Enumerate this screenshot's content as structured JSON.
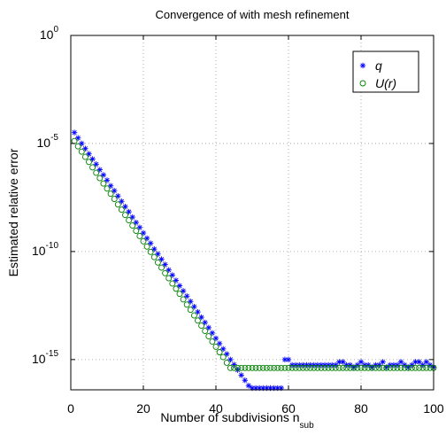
{
  "chart_data": {
    "type": "scatter",
    "title": "Convergence of with mesh refinement",
    "xlabel": "Number of subdivisions n",
    "xlabel_sub": "sub",
    "ylabel": "Estimated relative error",
    "xlim": [
      0,
      100
    ],
    "ylim_log10": [
      -16.4,
      0
    ],
    "yscale": "log",
    "grid": true,
    "legend_position": "top-right",
    "x_ticks": [
      0,
      20,
      40,
      60,
      80,
      100
    ],
    "y_ticks_exp": [
      0,
      -5,
      -10,
      -15
    ],
    "y_tick_base": "10",
    "series": [
      {
        "name": "q",
        "marker": "asterisk",
        "color": "#0000ff",
        "x": [
          1,
          2,
          3,
          4,
          5,
          6,
          7,
          8,
          9,
          10,
          11,
          12,
          13,
          14,
          15,
          16,
          17,
          18,
          19,
          20,
          21,
          22,
          23,
          24,
          25,
          26,
          27,
          28,
          29,
          30,
          31,
          32,
          33,
          34,
          35,
          36,
          37,
          38,
          39,
          40,
          41,
          42,
          43,
          44,
          45,
          46,
          47,
          48,
          49,
          50,
          51,
          52,
          53,
          54,
          55,
          56,
          57,
          58,
          59,
          60,
          61,
          62,
          63,
          64,
          65,
          66,
          67,
          68,
          69,
          70,
          71,
          72,
          73,
          74,
          75,
          76,
          77,
          78,
          79,
          80,
          81,
          82,
          83,
          84,
          85,
          86,
          87,
          88,
          89,
          90,
          91,
          92,
          93,
          94,
          95,
          96,
          97,
          98,
          99,
          100
        ],
        "y": [
          "3.2e-5",
          "1.8e-5",
          "1.0e-5",
          "5.8e-6",
          "3.3e-6",
          "1.9e-6",
          "1.1e-6",
          "6.1e-7",
          "3.5e-7",
          "2.0e-7",
          "1.1e-7",
          "6.5e-8",
          "3.7e-8",
          "2.1e-8",
          "1.2e-8",
          "6.9e-9",
          "3.9e-9",
          "2.2e-9",
          "1.3e-9",
          "7.2e-10",
          "4.1e-10",
          "2.4e-10",
          "1.3e-10",
          "7.7e-11",
          "4.4e-11",
          "2.5e-11",
          "1.4e-11",
          "8.1e-12",
          "4.6e-12",
          "2.6e-12",
          "1.5e-12",
          "8.6e-13",
          "4.9e-13",
          "2.8e-13",
          "1.6e-13",
          "9.1e-14",
          "5.2e-14",
          "3.0e-14",
          "1.7e-14",
          "9.6e-15",
          "5.5e-15",
          "3.1e-15",
          "1.8e-15",
          "1.0e-15",
          "5.8e-16",
          "3.3e-16",
          "1.9e-16",
          "1.1e-16",
          "6.2e-17",
          "3.5e-17",
          "2.0e-17",
          "1.2e-17",
          "6.6e-18",
          "3.8e-18",
          "2.1e-18",
          "1.2e-18",
          "7.0e-19",
          "4.0e-19",
          "1.0e-15",
          "1.0e-15",
          "5.6e-16",
          "5.6e-16",
          "5.6e-16",
          "5.6e-16",
          "5.6e-16",
          "5.6e-16",
          "5.6e-16",
          "5.6e-16",
          "5.6e-16",
          "5.6e-16",
          "5.6e-16",
          "5.6e-16",
          "5.6e-16",
          "7.8e-16",
          "7.8e-16",
          "5.6e-16",
          "5.6e-16",
          "4.4e-16",
          "5.6e-16",
          "7.8e-16",
          "5.6e-16",
          "5.6e-16",
          "4.4e-16",
          "5.6e-16",
          "5.6e-16",
          "7.8e-16",
          "4.4e-16",
          "5.6e-16",
          "5.6e-16",
          "5.6e-16",
          "7.8e-16",
          "5.6e-16",
          "4.4e-16",
          "5.6e-16",
          "7.8e-16",
          "7.8e-16",
          "5.6e-16",
          "7.8e-16",
          "5.6e-16",
          "4.4e-16"
        ]
      },
      {
        "name": "U(r)",
        "marker": "circle",
        "color": "#008000",
        "x": [
          1,
          2,
          3,
          4,
          5,
          6,
          7,
          8,
          9,
          10,
          11,
          12,
          13,
          14,
          15,
          16,
          17,
          18,
          19,
          20,
          21,
          22,
          23,
          24,
          25,
          26,
          27,
          28,
          29,
          30,
          31,
          32,
          33,
          34,
          35,
          36,
          37,
          38,
          39,
          40,
          41,
          42,
          43,
          44,
          45,
          46,
          47,
          48,
          49,
          50,
          51,
          52,
          53,
          54,
          55,
          56,
          57,
          58,
          59,
          60,
          61,
          62,
          63,
          64,
          65,
          66,
          67,
          68,
          69,
          70,
          71,
          72,
          73,
          74,
          75,
          76,
          77,
          78,
          79,
          80,
          81,
          82,
          83,
          84,
          85,
          86,
          87,
          88,
          89,
          90,
          91,
          92,
          93,
          94,
          95,
          96,
          97,
          98,
          99,
          100
        ],
        "y": [
          "1.3e-5",
          "7.4e-6",
          "4.2e-6",
          "2.4e-6",
          "1.4e-6",
          "7.8e-7",
          "4.4e-7",
          "2.5e-7",
          "1.4e-7",
          "8.2e-8",
          "4.7e-8",
          "2.7e-8",
          "1.5e-8",
          "8.6e-9",
          "4.9e-9",
          "2.8e-9",
          "1.6e-9",
          "9.1e-10",
          "5.2e-10",
          "3.0e-10",
          "1.7e-10",
          "9.6e-11",
          "5.5e-11",
          "3.1e-11",
          "1.8e-11",
          "1.0e-11",
          "5.8e-12",
          "3.3e-12",
          "1.9e-12",
          "1.1e-12",
          "6.1e-13",
          "3.5e-13",
          "2.0e-13",
          "1.1e-13",
          "6.4e-14",
          "3.7e-14",
          "2.1e-14",
          "1.2e-14",
          "6.8e-15",
          "3.9e-15",
          "2.2e-15",
          "1.3e-15",
          "7.1e-16",
          "4.1e-16",
          "4.1e-16",
          "4.1e-16",
          "4.1e-16",
          "4.1e-16",
          "4.1e-16",
          "4.1e-16",
          "4.1e-16",
          "4.1e-16",
          "4.1e-16",
          "4.1e-16",
          "4.1e-16",
          "4.1e-16",
          "4.1e-16",
          "4.1e-16",
          "4.1e-16",
          "4.1e-16",
          "4.1e-16",
          "4.1e-16",
          "4.1e-16",
          "4.1e-16",
          "4.1e-16",
          "4.1e-16",
          "4.1e-16",
          "4.1e-16",
          "4.1e-16",
          "4.1e-16",
          "4.1e-16",
          "4.1e-16",
          "4.1e-16",
          "4.1e-16",
          "4.1e-16",
          "4.1e-16",
          "4.1e-16",
          "4.1e-16",
          "4.1e-16",
          "4.1e-16",
          "4.1e-16",
          "4.1e-16",
          "4.1e-16",
          "4.1e-16",
          "4.1e-16",
          "4.1e-16",
          "4.1e-16",
          "4.1e-16",
          "4.1e-16",
          "4.1e-16",
          "4.1e-16",
          "4.1e-16",
          "4.1e-16",
          "4.1e-16",
          "4.1e-16",
          "4.1e-16",
          "4.1e-16",
          "4.1e-16",
          "4.1e-16",
          "4.1e-16"
        ]
      }
    ]
  }
}
